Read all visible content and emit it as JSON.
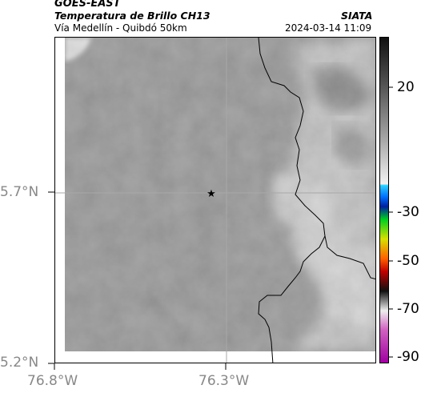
{
  "header": {
    "satellite": "GOES-EAST",
    "product": "Temperatura de Brillo CH13",
    "organization": "SIATA",
    "region": "Vía Medellín - Quibdó 50km",
    "datetime": "2024-03-14 11:09"
  },
  "map": {
    "lat_ticks": [
      "5.7°N",
      "5.2°N"
    ],
    "lon_ticks": [
      "76.8°W",
      "76.3°W"
    ],
    "marker": "star-marker"
  },
  "colorbar": {
    "ticks": [
      "20",
      "-30",
      "-50",
      "-70",
      "-90"
    ]
  },
  "colors": {
    "background_gray": "#8a8a8a",
    "bright_region": "#cfcfcf",
    "border_line": "#000000",
    "gridline": "#b0b0b0"
  }
}
